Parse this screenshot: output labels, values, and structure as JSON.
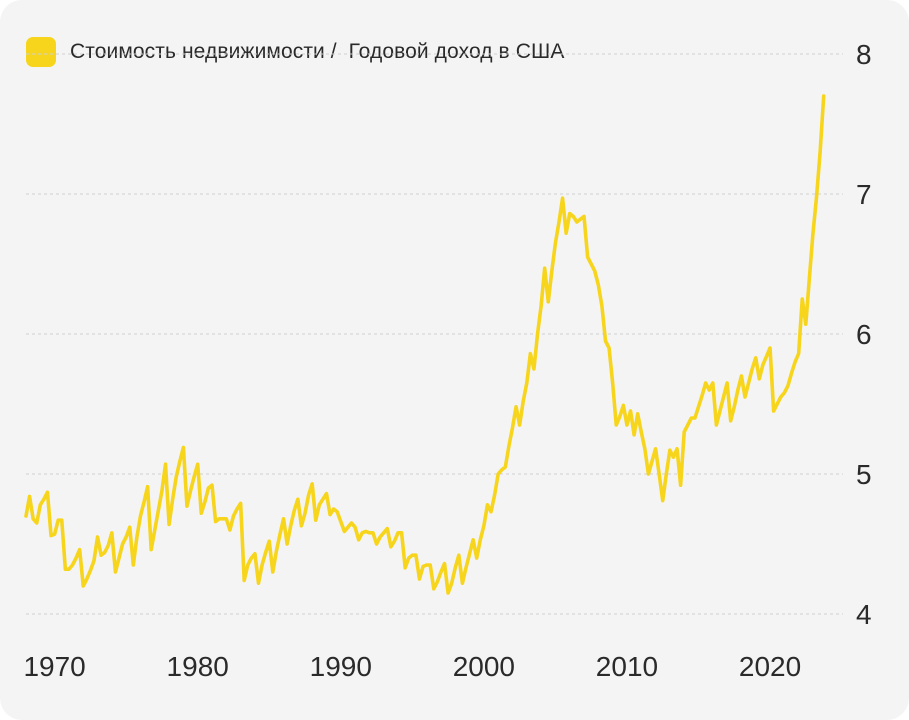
{
  "colors": {
    "background": "#f4f4f4",
    "line": "#f7d51d",
    "grid": "#cfcfcf",
    "text": "#2a2a2a"
  },
  "legend": {
    "label": "Стоимость недвижимости /  Годовой доход в США"
  },
  "chart_data": {
    "type": "line",
    "title": "",
    "xlabel": "",
    "ylabel": "",
    "ylim": [
      4,
      8
    ],
    "xlim": [
      1968,
      2024.4
    ],
    "grid": "horizontal dashed",
    "legend_position": "top-left",
    "y_ticks": [
      "4",
      "5",
      "6",
      "7",
      "8"
    ],
    "x_ticks": [
      "1970",
      "1980",
      "1990",
      "2000",
      "2010",
      "2020"
    ],
    "series": [
      {
        "name": "Стоимость недвижимости /  Годовой доход в США",
        "points": [
          [
            1968.0,
            4.7
          ],
          [
            1968.25,
            4.84
          ],
          [
            1968.5,
            4.68
          ],
          [
            1968.75,
            4.65
          ],
          [
            1969.0,
            4.78
          ],
          [
            1969.25,
            4.82
          ],
          [
            1969.5,
            4.87
          ],
          [
            1969.75,
            4.56
          ],
          [
            1970.0,
            4.57
          ],
          [
            1970.25,
            4.67
          ],
          [
            1970.5,
            4.67
          ],
          [
            1970.75,
            4.32
          ],
          [
            1971.0,
            4.32
          ],
          [
            1971.25,
            4.35
          ],
          [
            1971.5,
            4.4
          ],
          [
            1971.75,
            4.46
          ],
          [
            1972.0,
            4.2
          ],
          [
            1972.25,
            4.25
          ],
          [
            1972.5,
            4.31
          ],
          [
            1972.75,
            4.38
          ],
          [
            1973.0,
            4.55
          ],
          [
            1973.25,
            4.42
          ],
          [
            1973.5,
            4.44
          ],
          [
            1973.75,
            4.49
          ],
          [
            1974.0,
            4.58
          ],
          [
            1974.25,
            4.3
          ],
          [
            1974.5,
            4.4
          ],
          [
            1974.75,
            4.5
          ],
          [
            1975.0,
            4.55
          ],
          [
            1975.25,
            4.62
          ],
          [
            1975.5,
            4.35
          ],
          [
            1975.75,
            4.55
          ],
          [
            1976.0,
            4.7
          ],
          [
            1976.25,
            4.8
          ],
          [
            1976.5,
            4.91
          ],
          [
            1976.75,
            4.46
          ],
          [
            1977.0,
            4.6
          ],
          [
            1977.25,
            4.74
          ],
          [
            1977.5,
            4.88
          ],
          [
            1977.75,
            5.07
          ],
          [
            1978.0,
            4.64
          ],
          [
            1978.25,
            4.82
          ],
          [
            1978.5,
            4.98
          ],
          [
            1978.75,
            5.09
          ],
          [
            1979.0,
            5.19
          ],
          [
            1979.25,
            4.77
          ],
          [
            1979.5,
            4.88
          ],
          [
            1979.75,
            4.98
          ],
          [
            1980.0,
            5.07
          ],
          [
            1980.25,
            4.72
          ],
          [
            1980.5,
            4.8
          ],
          [
            1980.75,
            4.9
          ],
          [
            1981.0,
            4.92
          ],
          [
            1981.25,
            4.66
          ],
          [
            1981.5,
            4.68
          ],
          [
            1981.75,
            4.68
          ],
          [
            1982.0,
            4.68
          ],
          [
            1982.25,
            4.6
          ],
          [
            1982.5,
            4.7
          ],
          [
            1982.75,
            4.75
          ],
          [
            1983.0,
            4.79
          ],
          [
            1983.25,
            4.24
          ],
          [
            1983.5,
            4.35
          ],
          [
            1983.75,
            4.4
          ],
          [
            1984.0,
            4.43
          ],
          [
            1984.25,
            4.22
          ],
          [
            1984.5,
            4.35
          ],
          [
            1984.75,
            4.44
          ],
          [
            1985.0,
            4.52
          ],
          [
            1985.25,
            4.3
          ],
          [
            1985.5,
            4.45
          ],
          [
            1985.75,
            4.57
          ],
          [
            1986.0,
            4.68
          ],
          [
            1986.25,
            4.5
          ],
          [
            1986.5,
            4.63
          ],
          [
            1986.75,
            4.74
          ],
          [
            1987.0,
            4.82
          ],
          [
            1987.25,
            4.63
          ],
          [
            1987.5,
            4.72
          ],
          [
            1987.75,
            4.85
          ],
          [
            1988.0,
            4.93
          ],
          [
            1988.25,
            4.67
          ],
          [
            1988.5,
            4.78
          ],
          [
            1988.75,
            4.82
          ],
          [
            1989.0,
            4.86
          ],
          [
            1989.25,
            4.71
          ],
          [
            1989.5,
            4.75
          ],
          [
            1989.75,
            4.73
          ],
          [
            1990.0,
            4.66
          ],
          [
            1990.25,
            4.59
          ],
          [
            1990.5,
            4.62
          ],
          [
            1990.75,
            4.65
          ],
          [
            1991.0,
            4.62
          ],
          [
            1991.25,
            4.53
          ],
          [
            1991.5,
            4.58
          ],
          [
            1991.75,
            4.59
          ],
          [
            1992.0,
            4.58
          ],
          [
            1992.25,
            4.58
          ],
          [
            1992.5,
            4.5
          ],
          [
            1992.75,
            4.55
          ],
          [
            1993.0,
            4.58
          ],
          [
            1993.25,
            4.61
          ],
          [
            1993.5,
            4.48
          ],
          [
            1993.75,
            4.52
          ],
          [
            1994.0,
            4.58
          ],
          [
            1994.25,
            4.58
          ],
          [
            1994.5,
            4.33
          ],
          [
            1994.75,
            4.4
          ],
          [
            1995.0,
            4.42
          ],
          [
            1995.25,
            4.42
          ],
          [
            1995.5,
            4.25
          ],
          [
            1995.75,
            4.34
          ],
          [
            1996.0,
            4.35
          ],
          [
            1996.25,
            4.35
          ],
          [
            1996.5,
            4.18
          ],
          [
            1996.75,
            4.23
          ],
          [
            1997.0,
            4.3
          ],
          [
            1997.25,
            4.36
          ],
          [
            1997.5,
            4.15
          ],
          [
            1997.75,
            4.22
          ],
          [
            1998.0,
            4.33
          ],
          [
            1998.25,
            4.42
          ],
          [
            1998.5,
            4.22
          ],
          [
            1998.75,
            4.33
          ],
          [
            1999.0,
            4.43
          ],
          [
            1999.25,
            4.53
          ],
          [
            1999.5,
            4.4
          ],
          [
            1999.75,
            4.53
          ],
          [
            2000.0,
            4.63
          ],
          [
            2000.25,
            4.78
          ],
          [
            2000.5,
            4.73
          ],
          [
            2000.75,
            4.85
          ],
          [
            2001.0,
            5.0
          ],
          [
            2001.25,
            5.03
          ],
          [
            2001.5,
            5.05
          ],
          [
            2001.75,
            5.2
          ],
          [
            2002.0,
            5.33
          ],
          [
            2002.25,
            5.48
          ],
          [
            2002.5,
            5.35
          ],
          [
            2002.75,
            5.52
          ],
          [
            2003.0,
            5.65
          ],
          [
            2003.25,
            5.86
          ],
          [
            2003.5,
            5.75
          ],
          [
            2003.75,
            6.0
          ],
          [
            2004.0,
            6.2
          ],
          [
            2004.25,
            6.47
          ],
          [
            2004.5,
            6.23
          ],
          [
            2004.75,
            6.45
          ],
          [
            2005.0,
            6.65
          ],
          [
            2005.25,
            6.8
          ],
          [
            2005.5,
            6.97
          ],
          [
            2005.75,
            6.72
          ],
          [
            2006.0,
            6.86
          ],
          [
            2006.25,
            6.84
          ],
          [
            2006.5,
            6.8
          ],
          [
            2006.75,
            6.82
          ],
          [
            2007.0,
            6.84
          ],
          [
            2007.25,
            6.55
          ],
          [
            2007.5,
            6.5
          ],
          [
            2007.75,
            6.45
          ],
          [
            2008.0,
            6.35
          ],
          [
            2008.25,
            6.2
          ],
          [
            2008.5,
            5.95
          ],
          [
            2008.75,
            5.9
          ],
          [
            2009.0,
            5.65
          ],
          [
            2009.25,
            5.35
          ],
          [
            2009.5,
            5.41
          ],
          [
            2009.75,
            5.49
          ],
          [
            2010.0,
            5.35
          ],
          [
            2010.25,
            5.45
          ],
          [
            2010.5,
            5.28
          ],
          [
            2010.75,
            5.43
          ],
          [
            2011.0,
            5.3
          ],
          [
            2011.25,
            5.18
          ],
          [
            2011.5,
            5.0
          ],
          [
            2011.75,
            5.09
          ],
          [
            2012.0,
            5.18
          ],
          [
            2012.25,
            5.0
          ],
          [
            2012.5,
            4.81
          ],
          [
            2012.75,
            5.0
          ],
          [
            2013.0,
            5.17
          ],
          [
            2013.25,
            5.12
          ],
          [
            2013.5,
            5.18
          ],
          [
            2013.75,
            4.92
          ],
          [
            2014.0,
            5.3
          ],
          [
            2014.25,
            5.35
          ],
          [
            2014.5,
            5.4
          ],
          [
            2014.75,
            5.4
          ],
          [
            2015.0,
            5.48
          ],
          [
            2015.25,
            5.56
          ],
          [
            2015.5,
            5.65
          ],
          [
            2015.75,
            5.6
          ],
          [
            2016.0,
            5.65
          ],
          [
            2016.25,
            5.35
          ],
          [
            2016.5,
            5.45
          ],
          [
            2016.75,
            5.55
          ],
          [
            2017.0,
            5.65
          ],
          [
            2017.25,
            5.38
          ],
          [
            2017.5,
            5.48
          ],
          [
            2017.75,
            5.6
          ],
          [
            2018.0,
            5.7
          ],
          [
            2018.25,
            5.55
          ],
          [
            2018.5,
            5.65
          ],
          [
            2018.75,
            5.75
          ],
          [
            2019.0,
            5.83
          ],
          [
            2019.25,
            5.68
          ],
          [
            2019.5,
            5.78
          ],
          [
            2019.75,
            5.84
          ],
          [
            2020.0,
            5.9
          ],
          [
            2020.25,
            5.45
          ],
          [
            2020.5,
            5.5
          ],
          [
            2020.75,
            5.55
          ],
          [
            2021.0,
            5.58
          ],
          [
            2021.25,
            5.63
          ],
          [
            2021.5,
            5.72
          ],
          [
            2021.75,
            5.8
          ],
          [
            2022.0,
            5.86
          ],
          [
            2022.25,
            6.25
          ],
          [
            2022.5,
            6.07
          ],
          [
            2022.75,
            6.4
          ],
          [
            2023.0,
            6.72
          ],
          [
            2023.25,
            6.98
          ],
          [
            2023.5,
            7.3
          ],
          [
            2023.75,
            7.7
          ]
        ]
      }
    ]
  }
}
